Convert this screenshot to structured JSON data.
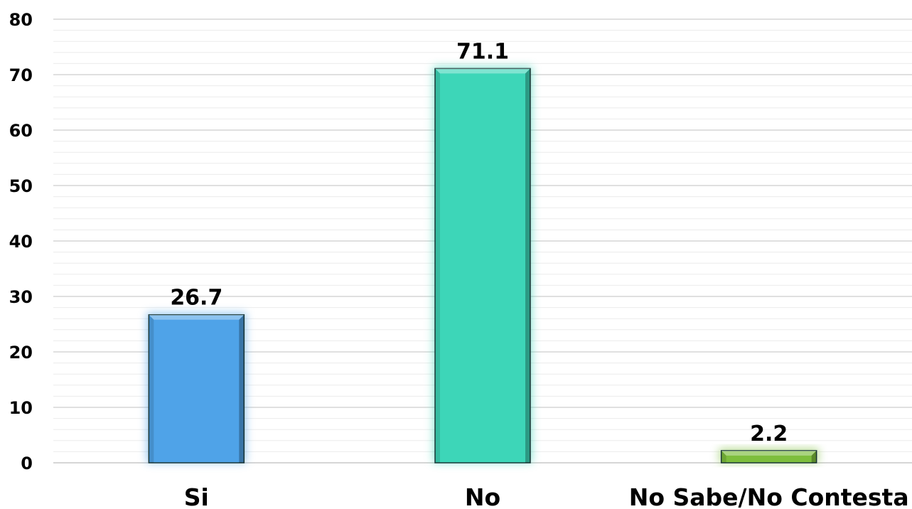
{
  "chart_data": {
    "type": "bar",
    "categories": [
      "Si",
      "No",
      "No Sabe/No Contesta"
    ],
    "values": [
      26.7,
      71.1,
      2.2
    ],
    "data_labels": [
      "26.7",
      "71.1",
      "2.2"
    ],
    "colors": [
      "#4FA3E8",
      "#3DD6B8",
      "#7DBE3C"
    ],
    "ylim": [
      0,
      80
    ],
    "yticks": [
      0,
      10,
      20,
      30,
      40,
      50,
      60,
      70,
      80
    ],
    "minor_grid_step": 2,
    "grid": true,
    "title": "",
    "xlabel": "",
    "ylabel": ""
  }
}
